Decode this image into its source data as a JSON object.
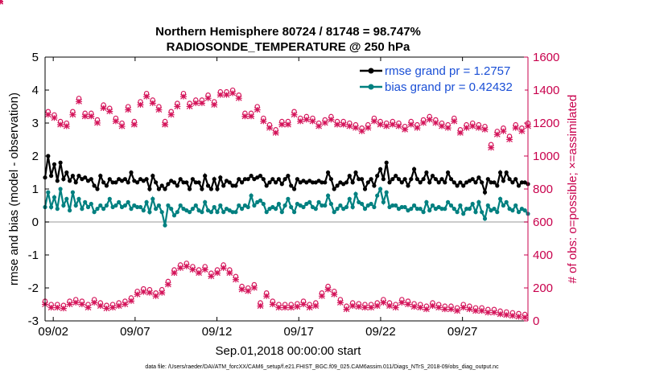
{
  "chart_data": {
    "type": "line",
    "title": "Northern Hemisphere 80724 / 81748 = 98.747%",
    "subtitle": "RADIOSONDE_TEMPERATURE @ 250 hPa",
    "xlabel": "Sep.01,2018 00:00:00 start",
    "ylabel": "rmse and bias (model - observation)",
    "y2label": "# of obs: o=possible; ×=assimilated",
    "footnote": "data file: /Users/raeder/DAI/ATM_forcXX/CAM6_setup/f.e21.FHIST_BGC.f09_025.CAM6assim.011/Diags_NTrS_2018-09/obs_diag_output.nc",
    "xlim": [
      1.5,
      31
    ],
    "ylim": [
      -3,
      5
    ],
    "y2lim": [
      0,
      1600
    ],
    "xticks": [
      2,
      7,
      12,
      17,
      22,
      27
    ],
    "xtick_labels": [
      "09/02",
      "09/07",
      "09/12",
      "09/17",
      "09/22",
      "09/27"
    ],
    "yticks": [
      -3,
      -2,
      -1,
      0,
      1,
      2,
      3,
      4,
      5
    ],
    "y2ticks": [
      0,
      200,
      400,
      600,
      800,
      1000,
      1200,
      1400,
      1600
    ],
    "legend": {
      "placement": "top-right"
    },
    "colors": {
      "rmse": "#000000",
      "bias": "#008080",
      "obs": "#d4145a",
      "zero": "#bbbbbb",
      "axis2": "#c8004c"
    },
    "series": [
      {
        "name": "rmse grand pr = 1.2757",
        "axis": "left",
        "values": [
          1.35,
          2.0,
          1.4,
          1.75,
          1.25,
          1.8,
          1.3,
          1.5,
          1.25,
          1.4,
          1.2,
          1.4,
          1.3,
          1.35,
          1.25,
          1.3,
          1.1,
          1.0,
          1.4,
          1.2,
          1.1,
          1.3,
          1.2,
          1.2,
          1.3,
          1.25,
          1.3,
          1.2,
          1.5,
          1.25,
          1.2,
          1.3,
          1.25,
          1.3,
          1.0,
          1.4,
          1.2,
          1.0,
          1.1,
          1.0,
          1.15,
          1.25,
          1.2,
          1.1,
          1.3,
          1.2,
          1.2,
          1.0,
          1.3,
          1.2,
          1.2,
          1.0,
          1.4,
          1.1,
          1.0,
          1.3,
          1.0,
          1.35,
          1.1,
          1.25,
          1.2,
          1.1,
          1.1,
          1.3,
          1.2,
          1.3,
          1.3,
          1.4,
          1.3,
          1.35,
          1.4,
          1.3,
          1.1,
          1.2,
          1.3,
          1.2,
          1.3,
          1.15,
          1.3,
          1.4,
          1.1,
          1.0,
          1.3,
          1.2,
          1.25,
          1.2,
          1.25,
          1.2,
          1.2,
          1.25,
          1.2,
          1.2,
          1.5,
          1.3,
          1.0,
          1.1,
          1.2,
          1.15,
          1.2,
          1.4,
          1.2,
          1.5,
          1.3,
          1.3,
          1.0,
          1.2,
          1.3,
          1.1,
          1.4,
          1.6,
          1.3,
          1.8,
          1.2,
          1.3,
          1.4,
          1.3,
          1.2,
          1.3,
          1.1,
          1.3,
          1.6,
          1.3,
          1.2,
          1.3,
          1.5,
          1.2,
          1.4,
          1.3,
          1.2,
          1.3,
          1.2,
          1.5,
          1.3,
          1.2,
          1.1,
          1.2,
          1.1,
          1.2,
          1.25,
          1.3,
          1.2,
          1.35,
          1.2,
          0.9,
          1.3,
          1.2,
          1.2,
          1.1,
          1.5,
          1.25,
          1.5,
          1.3,
          1.2,
          1.3,
          1.1,
          1.2,
          1.2,
          1.15
        ]
      },
      {
        "name": "bias grand pr = 0.42432",
        "axis": "left",
        "values": [
          0.45,
          0.9,
          0.45,
          0.75,
          0.4,
          1.0,
          0.5,
          0.7,
          0.35,
          0.9,
          0.5,
          0.7,
          0.4,
          0.6,
          0.45,
          0.55,
          0.3,
          0.4,
          0.5,
          0.4,
          0.5,
          0.7,
          0.45,
          0.5,
          0.6,
          0.45,
          0.5,
          0.6,
          0.4,
          0.5,
          0.45,
          0.45,
          0.35,
          0.6,
          0.3,
          0.7,
          0.4,
          0.5,
          0.3,
          -0.1,
          0.5,
          0.4,
          0.2,
          0.3,
          0.5,
          0.4,
          0.35,
          0.3,
          0.4,
          0.5,
          0.35,
          0.3,
          0.6,
          0.35,
          0.3,
          0.45,
          0.3,
          0.5,
          0.3,
          0.4,
          0.35,
          0.3,
          0.3,
          0.5,
          0.4,
          0.5,
          0.45,
          0.8,
          0.5,
          0.6,
          0.65,
          0.55,
          0.3,
          0.4,
          0.45,
          0.4,
          0.55,
          0.3,
          0.5,
          0.7,
          0.45,
          0.3,
          0.55,
          0.5,
          0.45,
          0.55,
          0.6,
          0.45,
          0.4,
          0.6,
          0.5,
          0.5,
          0.8,
          0.55,
          0.3,
          0.4,
          0.5,
          0.4,
          0.45,
          0.7,
          0.45,
          0.85,
          0.6,
          0.55,
          0.4,
          0.5,
          0.55,
          0.45,
          0.8,
          1.0,
          0.6,
          0.9,
          0.45,
          0.5,
          0.5,
          0.4,
          0.45,
          0.45,
          0.35,
          0.4,
          0.5,
          0.4,
          0.4,
          0.3,
          0.6,
          0.35,
          0.5,
          0.4,
          0.45,
          0.4,
          0.4,
          0.6,
          0.5,
          0.4,
          0.3,
          0.5,
          0.25,
          0.4,
          0.4,
          0.55,
          0.3,
          0.6,
          0.3,
          0.1,
          0.5,
          0.35,
          0.4,
          0.3,
          0.7,
          0.5,
          0.6,
          0.4,
          0.35,
          0.5,
          0.3,
          0.4,
          0.35,
          0.25
        ]
      },
      {
        "name": "possible",
        "axis": "right",
        "marker": "o",
        "values": [
          110,
          1260,
          90,
          1240,
          90,
          1200,
          85,
          1190,
          110,
          1260,
          120,
          1340,
          110,
          1250,
          90,
          1250,
          120,
          1210,
          100,
          1300,
          85,
          1280,
          90,
          1220,
          100,
          1190,
          110,
          1290,
          130,
          1200,
          170,
          1320,
          185,
          1370,
          180,
          1330,
          160,
          1290,
          180,
          1200,
          230,
          1260,
          300,
          1310,
          330,
          1370,
          340,
          1310,
          320,
          1330,
          300,
          1330,
          320,
          1360,
          280,
          1320,
          300,
          1380,
          330,
          1380,
          300,
          1390,
          260,
          1360,
          200,
          1250,
          190,
          1250,
          210,
          1290,
          100,
          1220,
          160,
          1180,
          110,
          1150,
          90,
          1200,
          90,
          1200,
          90,
          1260,
          95,
          1220,
          110,
          1230,
          90,
          1220,
          100,
          1190,
          160,
          1210,
          200,
          1230,
          170,
          1200,
          120,
          1200,
          80,
          1190,
          100,
          1180,
          95,
          1160,
          90,
          1180,
          90,
          1220,
          100,
          1200,
          120,
          1190,
          100,
          1200,
          90,
          1190,
          120,
          1170,
          110,
          1200,
          95,
          1180,
          90,
          1210,
          80,
          1230,
          100,
          1210,
          90,
          1190,
          80,
          1180,
          80,
          1220,
          70,
          1150,
          90,
          1180,
          80,
          1190,
          70,
          1180,
          70,
          1170,
          60,
          1060,
          60,
          1140,
          50,
          1160,
          45,
          1110,
          40,
          1180,
          35,
          1160,
          30,
          1190,
          30,
          1120,
          0,
          1120,
          0,
          1130
        ]
      }
    ],
    "assimilated": {
      "name": "assimilated",
      "axis": "right",
      "marker": "x"
    }
  }
}
